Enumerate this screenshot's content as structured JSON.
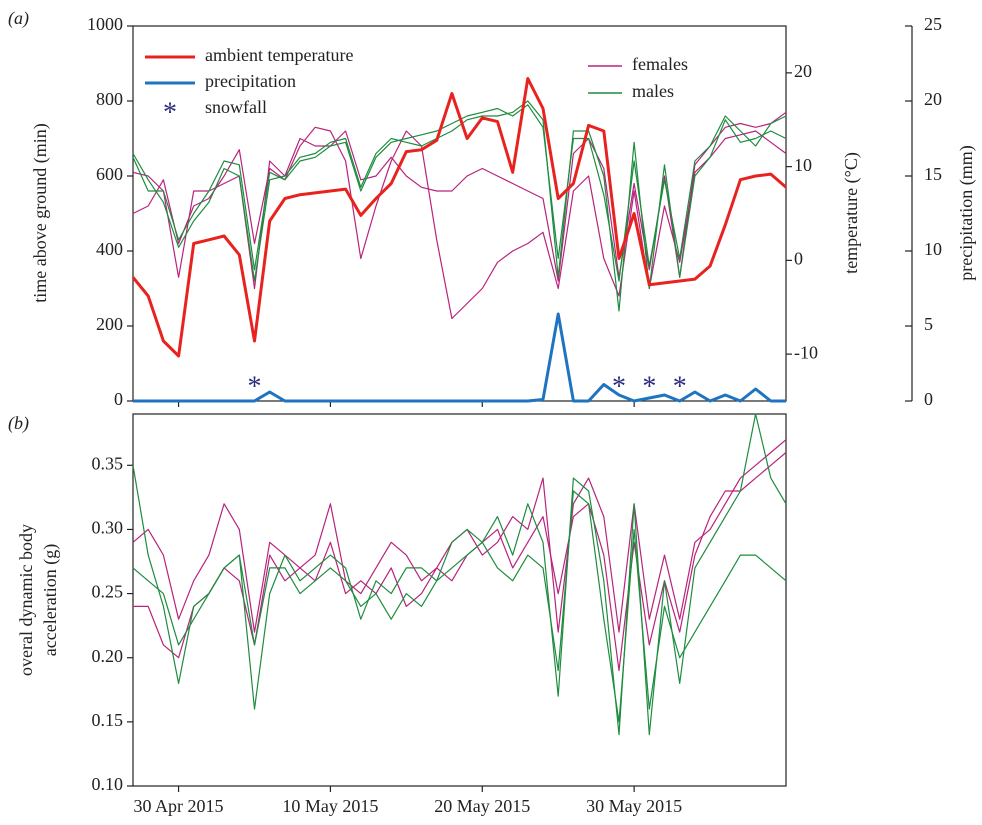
{
  "chart_data": [
    {
      "type": "line",
      "panel_label": "(a)",
      "y_label": "time above ground (min)",
      "y2_label": "temperature (°C)",
      "y3_label": "precipitation (mm)",
      "x": [
        "2015-04-27",
        "2015-04-28",
        "2015-04-29",
        "2015-04-30",
        "2015-05-01",
        "2015-05-02",
        "2015-05-03",
        "2015-05-04",
        "2015-05-05",
        "2015-05-06",
        "2015-05-07",
        "2015-05-08",
        "2015-05-09",
        "2015-05-10",
        "2015-05-11",
        "2015-05-12",
        "2015-05-13",
        "2015-05-14",
        "2015-05-15",
        "2015-05-16",
        "2015-05-17",
        "2015-05-18",
        "2015-05-19",
        "2015-05-20",
        "2015-05-21",
        "2015-05-22",
        "2015-05-23",
        "2015-05-24",
        "2015-05-25",
        "2015-05-26",
        "2015-05-27",
        "2015-05-28",
        "2015-05-29",
        "2015-05-30",
        "2015-05-31",
        "2015-06-01",
        "2015-06-02",
        "2015-06-03",
        "2015-06-04",
        "2015-06-05",
        "2015-06-06",
        "2015-06-07",
        "2015-06-08",
        "2015-06-09"
      ],
      "xlim": [
        "2015-04-27",
        "2015-06-09"
      ],
      "ylim": [
        0,
        1000
      ],
      "yticks": [
        0,
        200,
        400,
        600,
        800,
        1000
      ],
      "y2lim": [
        -15,
        25
      ],
      "y2ticks": [
        -10,
        0,
        10,
        20
      ],
      "y3lim": [
        0,
        25
      ],
      "y3ticks": [
        0,
        5,
        10,
        15,
        20,
        25
      ],
      "series": [
        {
          "name": "females",
          "color": "#b8237c",
          "legend_loc": "upper right",
          "values": [
            610,
            600,
            560,
            330,
            560,
            560,
            580,
            600,
            300,
            640,
            600,
            700,
            680,
            680,
            720,
            590,
            600,
            650,
            600,
            570,
            560,
            560,
            600,
            620,
            600,
            580,
            560,
            540,
            320,
            660,
            700,
            620,
            330,
            580,
            350,
            600,
            330,
            630,
            680,
            730,
            740,
            730,
            740,
            770
          ]
        },
        {
          "name": "females",
          "color": "#b8237c",
          "legend_loc": "upper right",
          "values": [
            500,
            520,
            590,
            420,
            520,
            540,
            600,
            670,
            420,
            620,
            590,
            680,
            730,
            720,
            640,
            380,
            520,
            640,
            720,
            680,
            430,
            220,
            260,
            300,
            370,
            400,
            420,
            450,
            300,
            560,
            600,
            380,
            280,
            560,
            300,
            520,
            370,
            610,
            650,
            700,
            710,
            720,
            690,
            660
          ]
        },
        {
          "name": "males",
          "color": "#1e8c3e",
          "legend_loc": "upper right",
          "values": [
            660,
            590,
            530,
            410,
            480,
            530,
            620,
            600,
            320,
            590,
            600,
            650,
            660,
            690,
            700,
            570,
            660,
            700,
            690,
            680,
            700,
            720,
            750,
            760,
            760,
            770,
            800,
            750,
            330,
            720,
            720,
            600,
            240,
            690,
            300,
            630,
            330,
            600,
            650,
            750,
            690,
            700,
            720,
            700
          ]
        },
        {
          "name": "males",
          "color": "#1e8c3e",
          "legend_loc": "upper right",
          "values": [
            650,
            560,
            560,
            430,
            500,
            560,
            640,
            630,
            350,
            610,
            590,
            640,
            650,
            680,
            690,
            560,
            650,
            690,
            700,
            710,
            720,
            740,
            760,
            770,
            780,
            760,
            790,
            730,
            380,
            700,
            700,
            550,
            320,
            640,
            360,
            590,
            380,
            640,
            680,
            760,
            720,
            680,
            740,
            760
          ]
        },
        {
          "name": "ambient temperature",
          "color": "#e8231f",
          "axis": "y2",
          "legend_loc": "upper left",
          "values": [
            -1.8,
            -3.8,
            -8.6,
            -10.2,
            1.8,
            2.2,
            2.6,
            0.6,
            -8.6,
            4.2,
            6.6,
            7.0,
            7.2,
            7.4,
            7.6,
            4.8,
            6.6,
            8.2,
            11.6,
            11.8,
            12.8,
            17.8,
            13.0,
            15.2,
            14.8,
            9.4,
            19.4,
            16.2,
            6.6,
            8.2,
            14.4,
            13.8,
            0.2,
            5.0,
            -2.6,
            -2.4,
            -2.2,
            -2.0,
            -0.6,
            3.8,
            8.6,
            9.0,
            9.2,
            7.8
          ]
        },
        {
          "name": "precipitation",
          "color": "#1f74c2",
          "axis": "y3",
          "legend_loc": "upper left",
          "values": [
            0,
            0,
            0,
            0,
            0,
            0,
            0,
            0,
            0,
            0.6,
            0,
            0,
            0,
            0,
            0,
            0,
            0,
            0,
            0,
            0,
            0,
            0,
            0,
            0,
            0,
            0,
            0,
            0.1,
            5.8,
            0,
            0,
            1.1,
            0.4,
            0,
            0.2,
            0.4,
            0,
            0.6,
            0,
            0.4,
            0,
            0.8,
            0,
            0
          ]
        }
      ],
      "snowfall": {
        "name": "snowfall",
        "marker": "*",
        "color": "#2b2b7d",
        "legend_loc": "upper left",
        "x": [
          "2015-05-05",
          "2015-05-29",
          "2015-05-31",
          "2015-06-02"
        ]
      }
    },
    {
      "type": "line",
      "panel_label": "(b)",
      "y_label": [
        "overal dynamic body",
        "acceleration (g)"
      ],
      "x": [
        "2015-04-27",
        "2015-04-28",
        "2015-04-29",
        "2015-04-30",
        "2015-05-01",
        "2015-05-02",
        "2015-05-03",
        "2015-05-04",
        "2015-05-05",
        "2015-05-06",
        "2015-05-07",
        "2015-05-08",
        "2015-05-09",
        "2015-05-10",
        "2015-05-11",
        "2015-05-12",
        "2015-05-13",
        "2015-05-14",
        "2015-05-15",
        "2015-05-16",
        "2015-05-17",
        "2015-05-18",
        "2015-05-19",
        "2015-05-20",
        "2015-05-21",
        "2015-05-22",
        "2015-05-23",
        "2015-05-24",
        "2015-05-25",
        "2015-05-26",
        "2015-05-27",
        "2015-05-28",
        "2015-05-29",
        "2015-05-30",
        "2015-05-31",
        "2015-06-01",
        "2015-06-02",
        "2015-06-03",
        "2015-06-04",
        "2015-06-05",
        "2015-06-06",
        "2015-06-07",
        "2015-06-08",
        "2015-06-09"
      ],
      "xlim": [
        "2015-04-27",
        "2015-06-09"
      ],
      "xticks": [
        {
          "value": "2015-04-30",
          "label": "30 Apr 2015"
        },
        {
          "value": "2015-05-10",
          "label": "10 May 2015"
        },
        {
          "value": "2015-05-20",
          "label": "20 May 2015"
        },
        {
          "value": "2015-05-30",
          "label": "30 May 2015"
        }
      ],
      "ylim": [
        0.1,
        0.39
      ],
      "yticks": [
        {
          "value": 0.1,
          "label": "0.10"
        },
        0.15,
        {
          "value": 0.2,
          "label": "0.20"
        },
        0.25,
        {
          "value": 0.3,
          "label": "0.30"
        },
        0.35
      ],
      "series": [
        {
          "name": "females",
          "color": "#b8237c",
          "values": [
            0.29,
            0.3,
            0.28,
            0.23,
            0.26,
            0.28,
            0.32,
            0.3,
            0.22,
            0.29,
            0.28,
            0.27,
            0.28,
            0.32,
            0.26,
            0.25,
            0.27,
            0.29,
            0.28,
            0.26,
            0.27,
            0.29,
            0.3,
            0.28,
            0.29,
            0.31,
            0.3,
            0.34,
            0.22,
            0.32,
            0.34,
            0.31,
            0.22,
            0.32,
            0.23,
            0.28,
            0.23,
            0.29,
            0.3,
            0.32,
            0.34,
            0.35,
            0.36,
            0.37
          ]
        },
        {
          "name": "females",
          "color": "#b8237c",
          "values": [
            0.24,
            0.24,
            0.21,
            0.2,
            0.24,
            0.25,
            0.27,
            0.26,
            0.21,
            0.28,
            0.26,
            0.27,
            0.26,
            0.29,
            0.25,
            0.26,
            0.25,
            0.27,
            0.24,
            0.25,
            0.27,
            0.26,
            0.28,
            0.29,
            0.3,
            0.27,
            0.29,
            0.31,
            0.25,
            0.31,
            0.32,
            0.28,
            0.19,
            0.29,
            0.21,
            0.26,
            0.22,
            0.28,
            0.31,
            0.33,
            0.33,
            0.34,
            0.35,
            0.36
          ]
        },
        {
          "name": "males",
          "color": "#1e8c3e",
          "values": [
            0.35,
            0.28,
            0.24,
            0.18,
            0.24,
            0.25,
            0.27,
            0.28,
            0.16,
            0.25,
            0.28,
            0.26,
            0.27,
            0.28,
            0.27,
            0.23,
            0.26,
            0.25,
            0.27,
            0.27,
            0.26,
            0.29,
            0.3,
            0.29,
            0.31,
            0.28,
            0.32,
            0.29,
            0.17,
            0.34,
            0.33,
            0.26,
            0.14,
            0.32,
            0.14,
            0.26,
            0.18,
            0.27,
            0.29,
            0.31,
            0.33,
            0.39,
            0.34,
            0.32
          ]
        },
        {
          "name": "males",
          "color": "#1e8c3e",
          "values": [
            0.27,
            0.26,
            0.25,
            0.21,
            0.23,
            0.25,
            0.27,
            0.28,
            0.21,
            0.27,
            0.27,
            0.25,
            0.26,
            0.27,
            0.26,
            0.24,
            0.25,
            0.23,
            0.25,
            0.24,
            0.26,
            0.27,
            0.28,
            0.29,
            0.27,
            0.26,
            0.28,
            0.27,
            0.19,
            0.33,
            0.32,
            0.23,
            0.15,
            0.3,
            0.16,
            0.24,
            0.2,
            0.22,
            0.24,
            0.26,
            0.28,
            0.28,
            0.27,
            0.26
          ]
        }
      ]
    }
  ]
}
